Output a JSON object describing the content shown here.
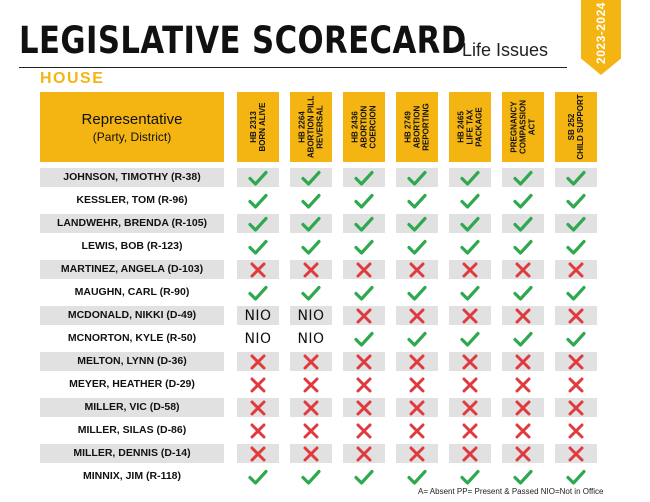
{
  "header": {
    "title": "LEGISLATIVE SCORECARD",
    "subtitle": "Life Issues",
    "year": "2023-2024",
    "chamber": "HOUSE"
  },
  "table": {
    "rep_header_title": "Representative",
    "rep_header_sub": "(Party, District)",
    "bills": [
      {
        "number": "HB 2313",
        "name": "BORN ALIVE"
      },
      {
        "number": "HB 2264",
        "name": "ABORTION PILL REVERSAL"
      },
      {
        "number": "HB 2436",
        "name": "ABORTION COERCION"
      },
      {
        "number": "HB 2749",
        "name": "ABORTION REPORTING"
      },
      {
        "number": "HB 2465",
        "name": "LIFE TAX PACKAGE"
      },
      {
        "number": "",
        "name": "PREGNANCY COMPASSION ACT"
      },
      {
        "number": "SB 252",
        "name": "CHILD SUPPORT"
      }
    ],
    "rows": [
      {
        "name": "JOHNSON, TIMOTHY (R-38)",
        "votes": [
          "Y",
          "Y",
          "Y",
          "Y",
          "Y",
          "Y",
          "Y"
        ]
      },
      {
        "name": "KESSLER, TOM (R-96)",
        "votes": [
          "Y",
          "Y",
          "Y",
          "Y",
          "Y",
          "Y",
          "Y"
        ]
      },
      {
        "name": "LANDWEHR, BRENDA (R-105)",
        "votes": [
          "Y",
          "Y",
          "Y",
          "Y",
          "Y",
          "Y",
          "Y"
        ]
      },
      {
        "name": "LEWIS, BOB (R-123)",
        "votes": [
          "Y",
          "Y",
          "Y",
          "Y",
          "Y",
          "Y",
          "Y"
        ]
      },
      {
        "name": "MARTINEZ, ANGELA (D-103)",
        "votes": [
          "N",
          "N",
          "N",
          "N",
          "N",
          "N",
          "N"
        ]
      },
      {
        "name": "MAUGHN, CARL (R-90)",
        "votes": [
          "Y",
          "Y",
          "Y",
          "Y",
          "Y",
          "Y",
          "Y"
        ]
      },
      {
        "name": "MCDONALD, NIKKI (D-49)",
        "votes": [
          "NIO",
          "NIO",
          "N",
          "N",
          "N",
          "N",
          "N"
        ]
      },
      {
        "name": "MCNORTON, KYLE (R-50)",
        "votes": [
          "NIO",
          "NIO",
          "Y",
          "Y",
          "Y",
          "Y",
          "Y"
        ]
      },
      {
        "name": "MELTON, LYNN (D-36)",
        "votes": [
          "N",
          "N",
          "N",
          "N",
          "N",
          "N",
          "N"
        ]
      },
      {
        "name": "MEYER, HEATHER (D-29)",
        "votes": [
          "N",
          "N",
          "N",
          "N",
          "N",
          "N",
          "N"
        ]
      },
      {
        "name": "MILLER, VIC (D-58)",
        "votes": [
          "N",
          "N",
          "N",
          "N",
          "N",
          "N",
          "N"
        ]
      },
      {
        "name": "MILLER, SILAS (D-86)",
        "votes": [
          "N",
          "N",
          "N",
          "N",
          "N",
          "N",
          "N"
        ]
      },
      {
        "name": "MILLER, DENNIS (D-14)",
        "votes": [
          "N",
          "N",
          "N",
          "N",
          "N",
          "N",
          "N"
        ]
      },
      {
        "name": "MINNIX, JIM (R-118)",
        "votes": [
          "Y",
          "Y",
          "Y",
          "Y",
          "Y",
          "Y",
          "Y"
        ]
      }
    ]
  },
  "legend": "A= Absent PP= Present & Passed NIO=Not in Office",
  "colors": {
    "accent": "#f4b513",
    "check": "#2fa84f",
    "cross": "#e0393e",
    "shade": "#e1e1e1"
  },
  "icons": {
    "yes": "check-icon",
    "no": "cross-icon"
  }
}
